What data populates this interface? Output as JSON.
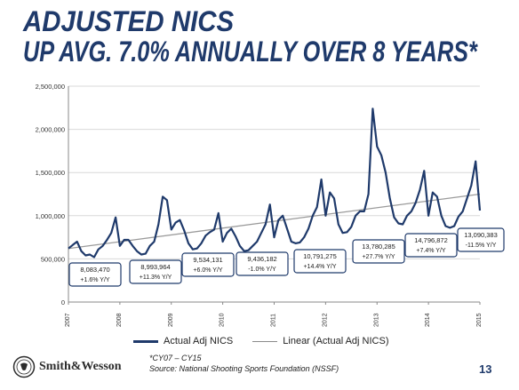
{
  "title_line1": "ADJUSTED NICS",
  "title_line2": "UP AVG. 7.0% ANNUALLY OVER 8 YEARS*",
  "footnote": "*CY07 – CY15",
  "source": "Source: National Shooting Sports Foundation (NSSF)",
  "logo_text": "Smith&Wesson",
  "page_number": "13",
  "colors": {
    "series": "#1f3a6b",
    "trend": "#9a9a9a",
    "title": "#1f3a6b",
    "callout_border": "#1f3a6b"
  },
  "chart_data": {
    "type": "line",
    "xlim": [
      2007,
      2015
    ],
    "ylim": [
      0,
      2500000
    ],
    "x_ticks": [
      "2007",
      "2008",
      "2009",
      "2010",
      "2011",
      "2012",
      "2013",
      "2014",
      "2015"
    ],
    "y_ticks": [
      "0",
      "500,000",
      "1,000,000",
      "1,500,000",
      "2,000,000",
      "2,500,000"
    ],
    "grid": true,
    "legend_position": "bottom",
    "series": [
      {
        "name": "Actual Adj NICS",
        "x": [
          2007.0,
          2007.083,
          2007.167,
          2007.25,
          2007.333,
          2007.417,
          2007.5,
          2007.583,
          2007.667,
          2007.75,
          2007.833,
          2007.917,
          2008.0,
          2008.083,
          2008.167,
          2008.25,
          2008.333,
          2008.417,
          2008.5,
          2008.583,
          2008.667,
          2008.75,
          2008.833,
          2008.917,
          2009.0,
          2009.083,
          2009.167,
          2009.25,
          2009.333,
          2009.417,
          2009.5,
          2009.583,
          2009.667,
          2009.75,
          2009.833,
          2009.917,
          2010.0,
          2010.083,
          2010.167,
          2010.25,
          2010.333,
          2010.417,
          2010.5,
          2010.583,
          2010.667,
          2010.75,
          2010.833,
          2010.917,
          2011.0,
          2011.083,
          2011.167,
          2011.25,
          2011.333,
          2011.417,
          2011.5,
          2011.583,
          2011.667,
          2011.75,
          2011.833,
          2011.917,
          2012.0,
          2012.083,
          2012.167,
          2012.25,
          2012.333,
          2012.417,
          2012.5,
          2012.583,
          2012.667,
          2012.75,
          2012.833,
          2012.917,
          2013.0,
          2013.083,
          2013.167,
          2013.25,
          2013.333,
          2013.417,
          2013.5,
          2013.583,
          2013.667,
          2013.75,
          2013.833,
          2013.917,
          2014.0,
          2014.083,
          2014.167,
          2014.25,
          2014.333,
          2014.417,
          2014.5,
          2014.583,
          2014.667,
          2014.75,
          2014.833,
          2014.917,
          2015.0
        ],
        "values": [
          620000,
          660000,
          700000,
          590000,
          540000,
          550000,
          520000,
          610000,
          650000,
          720000,
          800000,
          980000,
          650000,
          720000,
          720000,
          650000,
          590000,
          550000,
          560000,
          650000,
          700000,
          900000,
          1220000,
          1180000,
          840000,
          920000,
          950000,
          830000,
          680000,
          610000,
          620000,
          680000,
          770000,
          810000,
          840000,
          1030000,
          700000,
          800000,
          850000,
          760000,
          650000,
          590000,
          600000,
          650000,
          700000,
          800000,
          900000,
          1130000,
          750000,
          950000,
          1000000,
          850000,
          700000,
          680000,
          690000,
          750000,
          850000,
          1000000,
          1100000,
          1420000,
          1000000,
          1270000,
          1200000,
          900000,
          800000,
          810000,
          870000,
          1000000,
          1050000,
          1050000,
          1250000,
          2240000,
          1800000,
          1700000,
          1500000,
          1200000,
          980000,
          910000,
          900000,
          1000000,
          1050000,
          1150000,
          1300000,
          1520000,
          1000000,
          1270000,
          1220000,
          1000000,
          880000,
          860000,
          880000,
          990000,
          1050000,
          1200000,
          1350000,
          1630000,
          1060000
        ]
      },
      {
        "name": "Linear (Actual Adj NICS)",
        "x": [
          2007,
          2015
        ],
        "values": [
          620000,
          1250000
        ]
      }
    ],
    "annotations": [
      {
        "year": "2007",
        "value": "8,083,470",
        "change": "+1.6% Y/Y"
      },
      {
        "year": "2008",
        "value": "8,993,964",
        "change": "+11.3% Y/Y"
      },
      {
        "year": "2009",
        "value": "9,534,131",
        "change": "+6.0% Y/Y"
      },
      {
        "year": "2010",
        "value": "9,436,182",
        "change": "-1.0% Y/Y"
      },
      {
        "year": "2011",
        "value": "10,791,275",
        "change": "+14.4% Y/Y"
      },
      {
        "year": "2012",
        "value": "13,780,285",
        "change": "+27.7% Y/Y"
      },
      {
        "year": "2013",
        "value": "14,796,872",
        "change": "+7.4% Y/Y"
      },
      {
        "year": "2014",
        "value": "13,090,383",
        "change": "-11.5% Y/Y"
      }
    ]
  }
}
